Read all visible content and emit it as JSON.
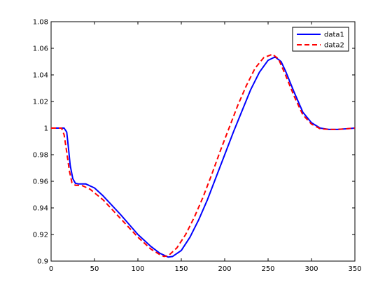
{
  "chart_data": {
    "type": "line",
    "xlim": [
      0,
      350
    ],
    "ylim": [
      0.9,
      1.08
    ],
    "xticks": [
      0,
      50,
      100,
      150,
      200,
      250,
      300,
      350
    ],
    "yticks": [
      0.9,
      0.92,
      0.94,
      0.96,
      0.98,
      1,
      1.02,
      1.04,
      1.06,
      1.08
    ],
    "xtick_labels": [
      "0",
      "50",
      "100",
      "150",
      "200",
      "250",
      "300",
      "350"
    ],
    "ytick_labels": [
      "0.9",
      "0.92",
      "0.94",
      "0.96",
      "0.98",
      "1",
      "1.02",
      "1.04",
      "1.06",
      "1.08"
    ],
    "grid": false,
    "legend_position": "top-right",
    "series": [
      {
        "name": "data1",
        "color": "#0000ff",
        "style": "solid",
        "points": [
          [
            0,
            1.0
          ],
          [
            15,
            1.0
          ],
          [
            18,
            0.997
          ],
          [
            20,
            0.985
          ],
          [
            22,
            0.972
          ],
          [
            25,
            0.962
          ],
          [
            28,
            0.9585
          ],
          [
            32,
            0.958
          ],
          [
            40,
            0.958
          ],
          [
            50,
            0.955
          ],
          [
            60,
            0.949
          ],
          [
            80,
            0.935
          ],
          [
            100,
            0.92
          ],
          [
            115,
            0.911
          ],
          [
            125,
            0.906
          ],
          [
            135,
            0.903
          ],
          [
            140,
            0.9035
          ],
          [
            150,
            0.908
          ],
          [
            160,
            0.918
          ],
          [
            170,
            0.931
          ],
          [
            180,
            0.946
          ],
          [
            190,
            0.963
          ],
          [
            200,
            0.98
          ],
          [
            210,
            0.997
          ],
          [
            220,
            1.013
          ],
          [
            230,
            1.029
          ],
          [
            240,
            1.042
          ],
          [
            250,
            1.051
          ],
          [
            258,
            1.0535
          ],
          [
            265,
            1.05
          ],
          [
            270,
            1.043
          ],
          [
            280,
            1.027
          ],
          [
            290,
            1.012
          ],
          [
            300,
            1.004
          ],
          [
            310,
            1.0
          ],
          [
            320,
            0.999
          ],
          [
            330,
            0.999
          ],
          [
            340,
            0.9995
          ],
          [
            350,
            1.0
          ]
        ]
      },
      {
        "name": "data2",
        "color": "#ff0000",
        "style": "dashed",
        "points": [
          [
            0,
            1.0
          ],
          [
            12,
            1.0
          ],
          [
            15,
            0.995
          ],
          [
            18,
            0.982
          ],
          [
            21,
            0.968
          ],
          [
            24,
            0.959
          ],
          [
            28,
            0.957
          ],
          [
            35,
            0.957
          ],
          [
            45,
            0.954
          ],
          [
            60,
            0.946
          ],
          [
            80,
            0.932
          ],
          [
            100,
            0.918
          ],
          [
            115,
            0.909
          ],
          [
            125,
            0.905
          ],
          [
            130,
            0.9035
          ],
          [
            135,
            0.904
          ],
          [
            145,
            0.91
          ],
          [
            155,
            0.92
          ],
          [
            165,
            0.933
          ],
          [
            175,
            0.948
          ],
          [
            185,
            0.965
          ],
          [
            195,
            0.983
          ],
          [
            205,
            1.0
          ],
          [
            215,
            1.017
          ],
          [
            225,
            1.032
          ],
          [
            235,
            1.045
          ],
          [
            245,
            1.053
          ],
          [
            255,
            1.0555
          ],
          [
            262,
            1.052
          ],
          [
            270,
            1.04
          ],
          [
            280,
            1.024
          ],
          [
            290,
            1.01
          ],
          [
            300,
            1.003
          ],
          [
            310,
            0.9995
          ],
          [
            320,
            0.999
          ],
          [
            330,
            0.999
          ],
          [
            340,
            0.9995
          ],
          [
            350,
            1.0
          ]
        ]
      }
    ]
  }
}
